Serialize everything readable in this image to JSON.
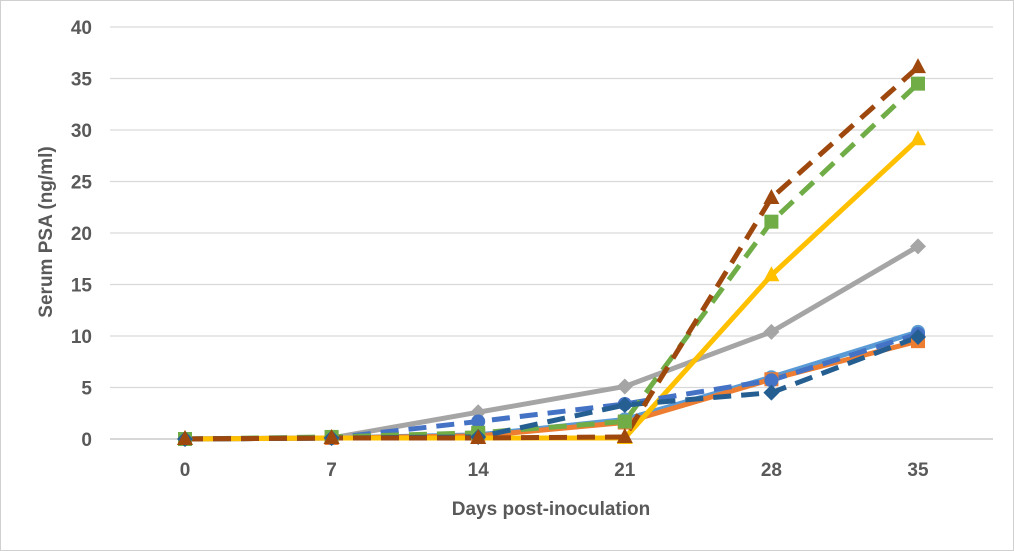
{
  "chart_data": {
    "type": "line",
    "xlabel": "Days post-inoculation",
    "ylabel": "Serum PSA (ng/ml)",
    "x": [
      0,
      7,
      14,
      21,
      28,
      35
    ],
    "x_tick_labels": [
      "0",
      "7",
      "14",
      "21",
      "28",
      "35"
    ],
    "y_tick_labels": [
      "0",
      "5",
      "10",
      "15",
      "20",
      "25",
      "30",
      "35",
      "40"
    ],
    "ylim": [
      0,
      40
    ],
    "grid": "horizontal",
    "legend": "none",
    "series": [
      {
        "color": "#5b9bd5",
        "dash": false,
        "marker": "circle",
        "values": [
          0,
          0.1,
          0.4,
          1.9,
          6.0,
          10.4
        ]
      },
      {
        "color": "#ed7d31",
        "dash": false,
        "marker": "square",
        "values": [
          0,
          0.1,
          0.3,
          1.6,
          5.8,
          9.5
        ]
      },
      {
        "color": "#a5a5a5",
        "dash": false,
        "marker": "diamond",
        "values": [
          0,
          0.1,
          2.6,
          5.1,
          10.4,
          18.7
        ]
      },
      {
        "color": "#ffc000",
        "dash": false,
        "marker": "triangle",
        "values": [
          0,
          0.1,
          0.1,
          0.1,
          15.9,
          29.1
        ]
      },
      {
        "color": "#4472c4",
        "dash": true,
        "marker": "circle",
        "values": [
          0,
          0.1,
          1.7,
          3.4,
          5.7,
          10.2
        ]
      },
      {
        "color": "#70ad47",
        "dash": true,
        "marker": "square",
        "values": [
          0,
          0.2,
          0.6,
          1.7,
          21.1,
          34.5
        ]
      },
      {
        "color": "#255e91",
        "dash": true,
        "marker": "diamond",
        "values": [
          0,
          0.1,
          0.2,
          3.3,
          4.5,
          9.9
        ]
      },
      {
        "color": "#9e480e",
        "dash": true,
        "marker": "triangle",
        "values": [
          0,
          0.1,
          0.1,
          0.2,
          23.4,
          36.1
        ]
      }
    ]
  }
}
